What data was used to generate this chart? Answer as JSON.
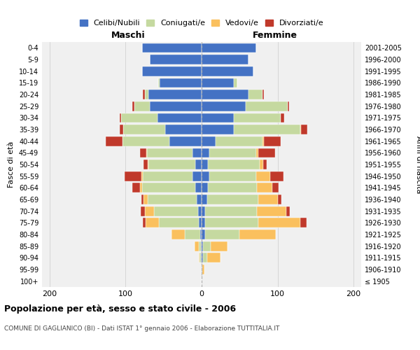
{
  "age_groups": [
    "100+",
    "95-99",
    "90-94",
    "85-89",
    "80-84",
    "75-79",
    "70-74",
    "65-69",
    "60-64",
    "55-59",
    "50-54",
    "45-49",
    "40-44",
    "35-39",
    "30-34",
    "25-29",
    "20-24",
    "15-19",
    "10-14",
    "5-9",
    "0-4"
  ],
  "birth_years": [
    "≤ 1905",
    "1906-1910",
    "1911-1915",
    "1916-1920",
    "1921-1925",
    "1926-1930",
    "1931-1935",
    "1936-1940",
    "1941-1945",
    "1946-1950",
    "1951-1955",
    "1956-1960",
    "1961-1965",
    "1966-1970",
    "1971-1975",
    "1976-1980",
    "1981-1985",
    "1986-1990",
    "1991-1995",
    "1996-2000",
    "2001-2005"
  ],
  "maschi": {
    "celibe": [
      0,
      0,
      1,
      1,
      2,
      4,
      5,
      6,
      8,
      12,
      8,
      12,
      42,
      48,
      58,
      68,
      70,
      55,
      78,
      68,
      78
    ],
    "coniugato": [
      0,
      0,
      2,
      3,
      20,
      52,
      58,
      65,
      70,
      65,
      62,
      60,
      62,
      55,
      48,
      20,
      5,
      2,
      0,
      0,
      0
    ],
    "vedovo": [
      0,
      0,
      1,
      5,
      18,
      18,
      12,
      5,
      3,
      2,
      1,
      1,
      0,
      0,
      0,
      0,
      0,
      0,
      0,
      0,
      0
    ],
    "divorziato": [
      0,
      0,
      0,
      0,
      0,
      3,
      5,
      3,
      10,
      22,
      5,
      8,
      22,
      5,
      2,
      3,
      2,
      0,
      0,
      0,
      0
    ]
  },
  "femmine": {
    "nubile": [
      0,
      1,
      2,
      2,
      5,
      5,
      5,
      7,
      8,
      10,
      8,
      10,
      18,
      42,
      42,
      58,
      62,
      42,
      68,
      62,
      72
    ],
    "coniugata": [
      0,
      0,
      5,
      10,
      45,
      70,
      68,
      68,
      65,
      62,
      68,
      62,
      62,
      88,
      62,
      55,
      18,
      5,
      0,
      0,
      0
    ],
    "vedova": [
      0,
      3,
      18,
      22,
      48,
      55,
      38,
      25,
      20,
      18,
      5,
      3,
      2,
      1,
      0,
      0,
      0,
      0,
      0,
      0,
      0
    ],
    "divorziata": [
      0,
      0,
      0,
      0,
      0,
      8,
      5,
      5,
      8,
      18,
      5,
      22,
      22,
      8,
      5,
      2,
      2,
      0,
      0,
      0,
      0
    ]
  },
  "colors": {
    "celibe": "#4472c4",
    "coniugato": "#c5d9a0",
    "vedovo": "#fac05e",
    "divorziato": "#c0392b"
  },
  "title": "Popolazione per età, sesso e stato civile - 2006",
  "subtitle": "COMUNE DI GAGLIANICO (BI) - Dati ISTAT 1° gennaio 2006 - Elaborazione TUTTITALIA.IT",
  "xlabel_left": "Maschi",
  "xlabel_right": "Femmine",
  "ylabel_left": "Fasce di età",
  "ylabel_right": "Anni di nascita",
  "xlim": 210,
  "legend_labels": [
    "Celibi/Nubili",
    "Coniugati/e",
    "Vedovi/e",
    "Divorziati/e"
  ],
  "bg_color": "#f0f0f0"
}
